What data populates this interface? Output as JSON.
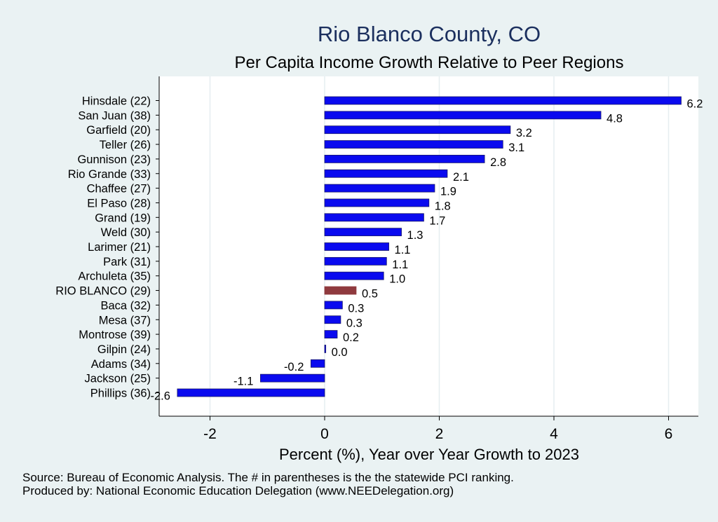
{
  "chart_data": {
    "type": "bar",
    "orientation": "horizontal",
    "title": "Rio Blanco County, CO",
    "subtitle": "Per Capita Income Growth Relative to Peer Regions",
    "xlabel": "Percent (%), Year over Year Growth to 2023",
    "xlim": [
      -2.85,
      6.55
    ],
    "xticks": [
      -2,
      0,
      2,
      4,
      6
    ],
    "grid": true,
    "categories": [
      "Hinsdale (22)",
      "San Juan (38)",
      "Garfield (20)",
      "Teller (26)",
      "Gunnison (23)",
      "Rio Grande (33)",
      "Chaffee (27)",
      "El Paso (28)",
      "Grand (19)",
      "Weld (30)",
      "Larimer (21)",
      "Park (31)",
      "Archuleta (35)",
      "RIO BLANCO (29)",
      "Baca (32)",
      "Mesa (37)",
      "Montrose (39)",
      "Gilpin (24)",
      "Adams (34)",
      "Jackson (25)",
      "Phillips (36)"
    ],
    "values": [
      6.22,
      4.82,
      3.24,
      3.11,
      2.79,
      2.14,
      1.92,
      1.82,
      1.73,
      1.34,
      1.12,
      1.08,
      1.03,
      0.55,
      0.31,
      0.28,
      0.22,
      0.02,
      -0.24,
      -1.12,
      -2.57
    ],
    "value_labels": [
      "6.2",
      "4.8",
      "3.2",
      "3.1",
      "2.8",
      "2.1",
      "1.9",
      "1.8",
      "1.7",
      "1.3",
      "1.1",
      "1.1",
      "1.0",
      "0.5",
      "0.3",
      "0.3",
      "0.2",
      "0.0",
      "-0.2",
      "-1.1",
      "-2.6"
    ],
    "highlight": "RIO BLANCO (29)",
    "colors": {
      "bar": "#0a0aef",
      "bar_edge": "#1a1a6a",
      "highlight": "#8f3a3e",
      "title": "#1b2f5e",
      "grid": "#e6eef0",
      "plot_bg": "#ffffff",
      "page_bg": "#eaf2f3"
    }
  },
  "footnotes": {
    "source": "Source: Bureau of Economic Analysis. The # in parentheses is the the statewide PCI ranking.",
    "producer": "Produced by: National Economic Education Delegation (www.NEEDelegation.org)"
  }
}
